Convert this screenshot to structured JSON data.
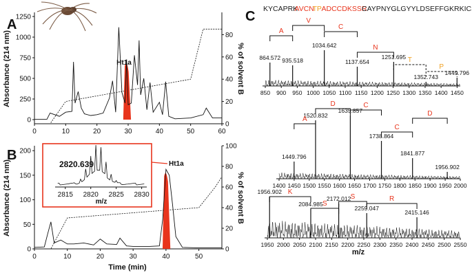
{
  "panel_labels": {
    "a": "A",
    "b": "B",
    "c": "C"
  },
  "panel_a": {
    "ylabel": "Absorbance (214 nm)",
    "y2label": "% of solvent B",
    "peak_label": "Ht1a",
    "yticks": [
      "0",
      "250",
      "500",
      "750",
      "1000",
      "1250"
    ],
    "xticks": [
      "0",
      "10",
      "20",
      "30",
      "40",
      "50",
      "60"
    ],
    "y2ticks": [
      "0",
      "20",
      "40",
      "60",
      "80"
    ]
  },
  "panel_b": {
    "ylabel": "Absorbance (214 nm)",
    "y2label": "% of solvent B",
    "xlabel": "Time (min)",
    "peak_label": "Ht1a",
    "yticks": [
      "0",
      "50",
      "100",
      "150",
      "200"
    ],
    "xticks": [
      "0",
      "10",
      "20",
      "30",
      "40",
      "50"
    ],
    "y2ticks": [
      "0",
      "20",
      "40",
      "60",
      "80",
      "100"
    ],
    "inset": {
      "mass": "2820.639",
      "xlabel": "m/z",
      "xticks": [
        "2815",
        "2820",
        "2825",
        "2830"
      ]
    }
  },
  "panel_c": {
    "sequence": [
      {
        "text": "KYCAPRK",
        "color": "#1a1a1a"
      },
      {
        "text": "AVCN",
        "color": "#e8341c"
      },
      {
        "text": "TP",
        "color": "#f0a020"
      },
      {
        "text": "ADCCDKSSR",
        "color": "#e8341c"
      },
      {
        "text": "CAYPNYGLGYYLDSEFFGKRKICSWRL",
        "color": "#1a1a1a"
      }
    ],
    "xlabel": "m/z",
    "spectrum1": {
      "xticks": [
        "850",
        "900",
        "950",
        "1000",
        "1050",
        "1100",
        "1150",
        "1200",
        "1250",
        "1300",
        "1350",
        "1400",
        "1450"
      ],
      "peaks": [
        "864.572",
        "935.518",
        "1034.642",
        "1137.654",
        "1251.695",
        "1352.743",
        "1449.796"
      ],
      "ladder": [
        "A",
        "V",
        "C",
        "N",
        "T",
        "P"
      ]
    },
    "spectrum2": {
      "xticks": [
        "1400",
        "1450",
        "1500",
        "1550",
        "1600",
        "1650",
        "1700",
        "1750",
        "1800",
        "1850",
        "1900",
        "1950",
        "2000"
      ],
      "peaks": [
        "1449.796",
        "1520.832",
        "1635.857",
        "1738.864",
        "1841.877",
        "1956.902"
      ],
      "ladder": [
        "A",
        "D",
        "C",
        "C",
        "D"
      ]
    },
    "spectrum3": {
      "xticks": [
        "1950",
        "2000",
        "2050",
        "2100",
        "2150",
        "2200",
        "2250",
        "2300",
        "2350",
        "2400",
        "2450",
        "2500",
        "2550"
      ],
      "peaks": [
        "1956.902",
        "2084.985",
        "2172.012",
        "2259.047",
        "2415.146"
      ],
      "ladder": [
        "K",
        "S",
        "S",
        "R"
      ]
    }
  },
  "colors": {
    "accent": "#e8341c",
    "orange": "#f0a020",
    "line": "#111111"
  },
  "chart_data": [
    {
      "type": "line",
      "panel": "A",
      "ylabel": "Absorbance (214 nm)",
      "y2label": "% of solvent B",
      "xlim": [
        0,
        60
      ],
      "ylim": [
        -50,
        1300
      ],
      "y2lim": [
        0,
        100
      ],
      "series": [
        {
          "x": [
            0,
            4,
            5,
            8,
            10,
            12,
            12.5,
            13,
            14,
            15,
            16,
            18,
            20,
            22,
            24,
            25,
            26,
            27,
            28,
            29,
            29.5,
            30,
            31,
            32,
            33,
            33.5,
            34,
            35,
            36,
            37,
            38,
            40,
            41,
            42,
            43,
            45,
            50,
            54,
            55,
            56,
            57,
            60
          ],
          "values": [
            5,
            5,
            80,
            40,
            90,
            100,
            700,
            200,
            340,
            140,
            70,
            50,
            60,
            80,
            260,
            470,
            90,
            1120,
            330,
            200,
            730,
            180,
            200,
            780,
            420,
            960,
            300,
            500,
            120,
            450,
            90,
            210,
            60,
            460,
            40,
            10,
            20,
            60,
            140,
            80,
            20,
            20
          ]
        },
        {
          "x": [
            0,
            5,
            10,
            50,
            54,
            60
          ],
          "values": [
            0,
            0,
            20,
            40,
            85,
            85
          ]
        }
      ],
      "highlight": {
        "label": "Ht1a",
        "x": 29.5,
        "value": 730
      }
    },
    {
      "type": "line",
      "panel": "B",
      "xlabel": "Time (min)",
      "ylabel": "Absorbance (214 nm)",
      "y2label": "% of solvent B",
      "xlim": [
        0,
        57
      ],
      "ylim": [
        0,
        210
      ],
      "y2lim": [
        0,
        100
      ],
      "series": [
        {
          "x": [
            0,
            3,
            4,
            5,
            6,
            8,
            10,
            12,
            15,
            18,
            20,
            22,
            25,
            26,
            28,
            30,
            35,
            38,
            39,
            40,
            41,
            42,
            43,
            45,
            50,
            57
          ],
          "values": [
            3,
            4,
            30,
            55,
            12,
            18,
            10,
            10,
            12,
            8,
            20,
            10,
            9,
            22,
            6,
            5,
            5,
            6,
            60,
            162,
            150,
            90,
            25,
            3,
            2,
            2
          ]
        },
        {
          "x": [
            0,
            5,
            10,
            50,
            55,
            57
          ],
          "values": [
            0,
            0,
            30,
            40,
            60,
            70
          ]
        }
      ],
      "highlight": {
        "label": "Ht1a",
        "x": 40,
        "value": 162
      }
    },
    {
      "type": "line",
      "panel": "C1",
      "xlabel": "m/z",
      "xlim": [
        850,
        1460
      ],
      "peaks": [
        {
          "x": 864.572
        },
        {
          "x": 935.518
        },
        {
          "x": 1034.642
        },
        {
          "x": 1137.654
        },
        {
          "x": 1251.695
        },
        {
          "x": 1352.743
        },
        {
          "x": 1449.796
        }
      ]
    },
    {
      "type": "line",
      "panel": "C2",
      "xlabel": "m/z",
      "xlim": [
        1400,
        2000
      ],
      "peaks": [
        {
          "x": 1449.796
        },
        {
          "x": 1520.832
        },
        {
          "x": 1635.857
        },
        {
          "x": 1738.864
        },
        {
          "x": 1841.877
        },
        {
          "x": 1956.902
        }
      ]
    },
    {
      "type": "line",
      "panel": "C3",
      "xlabel": "m/z",
      "xlim": [
        1950,
        2550
      ],
      "peaks": [
        {
          "x": 1956.902
        },
        {
          "x": 2084.985
        },
        {
          "x": 2172.012
        },
        {
          "x": 2259.047
        },
        {
          "x": 2415.146
        }
      ]
    }
  ]
}
